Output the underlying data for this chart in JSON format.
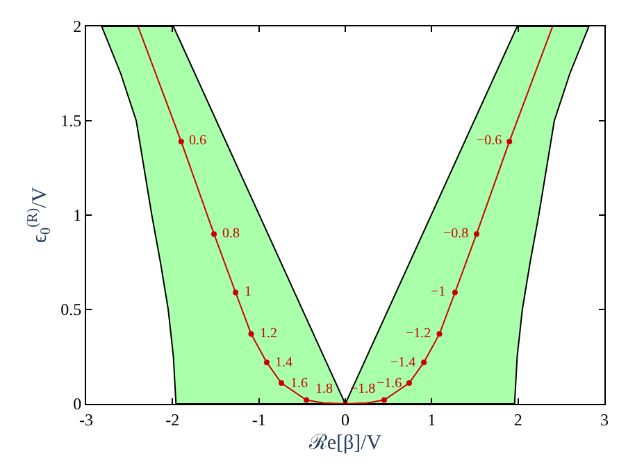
{
  "chart_data": {
    "type": "line",
    "xlabel": "ℛe[β]/V",
    "ylabel": "ϵ$_{0}$$^{(R)}$/V",
    "xlim": [
      -3,
      3
    ],
    "ylim": [
      0,
      2
    ],
    "xticks": [
      -3,
      -2,
      -1,
      0,
      1,
      2,
      3
    ],
    "yticks": [
      0,
      0.5,
      1,
      1.5,
      2
    ],
    "series": [
      {
        "type": "area",
        "color": "#aaffaa",
        "x": [
          -1.96,
          -1.99,
          -2.05,
          -2.14,
          -2.24,
          -2.33,
          -2.42,
          -2.6,
          -2.82,
          -1.99,
          0,
          -1.96
        ],
        "values": [
          0,
          0.25,
          0.5,
          0.75,
          1,
          1.25,
          1.5,
          1.75,
          2,
          2,
          0,
          0
        ]
      },
      {
        "type": "area",
        "color": "#aaffaa",
        "x": [
          1.96,
          1.99,
          2.05,
          2.14,
          2.24,
          2.33,
          2.42,
          2.6,
          2.82,
          1.99,
          0,
          1.96
        ],
        "values": [
          0,
          0.25,
          0.5,
          0.75,
          1,
          1.25,
          1.5,
          1.75,
          2,
          2,
          0,
          0
        ]
      },
      {
        "color": "#cc0000",
        "marker": "none",
        "x": [
          -2.4,
          -1.9,
          -1.52,
          -1.27,
          -1.09,
          -0.91,
          -0.74,
          -0.45,
          -0.25,
          0
        ],
        "values": [
          2,
          1.39,
          0.9,
          0.59,
          0.37,
          0.22,
          0.11,
          0.02,
          0.005,
          0
        ]
      },
      {
        "color": "#cc0000",
        "marker": "none",
        "x": [
          2.4,
          1.9,
          1.52,
          1.27,
          1.09,
          0.91,
          0.74,
          0.45,
          0.25,
          0
        ],
        "values": [
          2,
          1.39,
          0.9,
          0.59,
          0.37,
          0.22,
          0.11,
          0.02,
          0.005,
          0
        ]
      },
      {
        "type": "scatter",
        "color": "#cc0000",
        "marker": "circle",
        "x": [
          -1.9,
          -1.52,
          -1.27,
          -1.09,
          -0.91,
          -0.74,
          -0.45,
          0,
          0.45,
          0.74,
          0.91,
          1.09,
          1.27,
          1.52,
          1.9
        ],
        "values": [
          1.39,
          0.9,
          0.59,
          0.37,
          0.22,
          0.11,
          0.02,
          0,
          0.02,
          0.11,
          0.22,
          0.37,
          0.59,
          0.9,
          1.39
        ]
      }
    ],
    "annotations": [
      {
        "text": "0.6",
        "x": -1.9,
        "y": 1.39
      },
      {
        "text": "0.8",
        "x": -1.52,
        "y": 0.9
      },
      {
        "text": "1",
        "x": -1.27,
        "y": 0.59
      },
      {
        "text": "1.2",
        "x": -1.09,
        "y": 0.37
      },
      {
        "text": "1.4",
        "x": -0.91,
        "y": 0.22
      },
      {
        "text": "1.6",
        "x": -0.74,
        "y": 0.11
      },
      {
        "text": "1.8",
        "x": -0.45,
        "y": 0.02
      },
      {
        "text": "−0.6",
        "x": 1.9,
        "y": 1.39
      },
      {
        "text": "−0.8",
        "x": 1.52,
        "y": 0.9
      },
      {
        "text": "−1",
        "x": 1.27,
        "y": 0.59
      },
      {
        "text": "−1.2",
        "x": 1.09,
        "y": 0.37
      },
      {
        "text": "−1.4",
        "x": 0.91,
        "y": 0.22
      },
      {
        "text": "−1.6",
        "x": 0.74,
        "y": 0.11
      },
      {
        "text": "−1.8",
        "x": 0.45,
        "y": 0.02
      }
    ]
  }
}
